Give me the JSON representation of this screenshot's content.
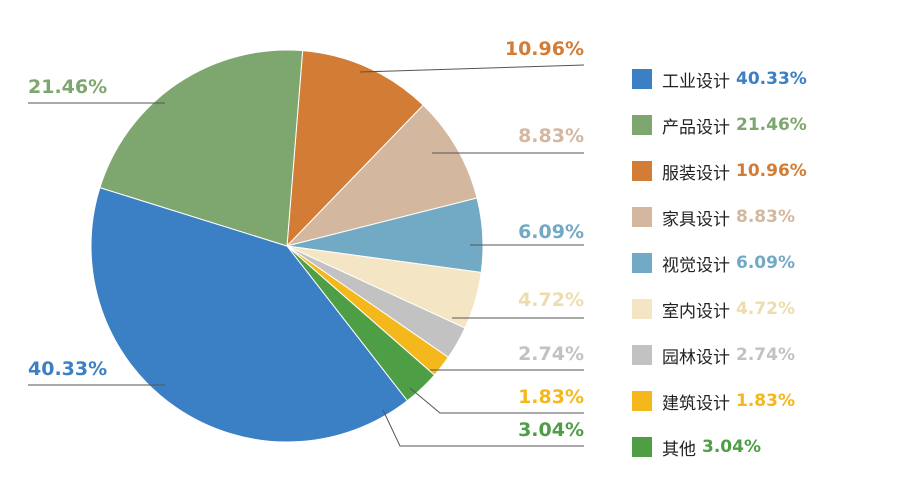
{
  "chart_data": {
    "type": "pie",
    "title": "",
    "legend_position": "right",
    "slices": [
      {
        "name": "工业设计",
        "value": 40.33,
        "label": "40.33%",
        "color": "#3b7fc4"
      },
      {
        "name": "产品设计",
        "value": 21.46,
        "label": "21.46%",
        "color": "#7ea76f"
      },
      {
        "name": "服装设计",
        "value": 10.96,
        "label": "10.96%",
        "color": "#d27c35"
      },
      {
        "name": "家具设计",
        "value": 8.83,
        "label": "8.83%",
        "color": "#d3b79e"
      },
      {
        "name": "视觉设计",
        "value": 6.09,
        "label": "6.09%",
        "color": "#72a9c4"
      },
      {
        "name": "室内设计",
        "value": 4.72,
        "label": "4.72%",
        "color": "#f4e6c4"
      },
      {
        "name": "园林设计",
        "value": 2.74,
        "label": "2.74%",
        "color": "#c2c2c2"
      },
      {
        "name": "建筑设计",
        "value": 1.83,
        "label": "1.83%",
        "color": "#f5b81c"
      },
      {
        "name": "其他",
        "value": 3.04,
        "label": "3.04%",
        "color": "#4e9e46"
      }
    ]
  }
}
